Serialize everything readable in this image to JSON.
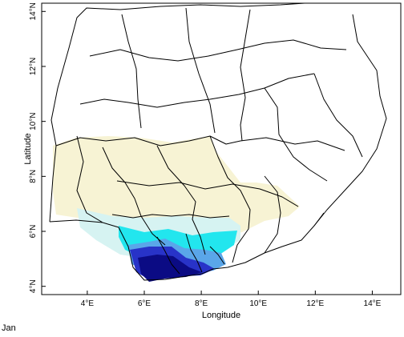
{
  "map": {
    "xlabel": "Longitude",
    "ylabel": "Latitude",
    "x_ticks": [
      {
        "value": 4,
        "label": "4°E"
      },
      {
        "value": 6,
        "label": "6°E"
      },
      {
        "value": 8,
        "label": "8°E"
      },
      {
        "value": 10,
        "label": "10°E"
      },
      {
        "value": 12,
        "label": "12°E"
      },
      {
        "value": 14,
        "label": "14°E"
      }
    ],
    "y_ticks": [
      {
        "value": 4,
        "label": "4°N"
      },
      {
        "value": 6,
        "label": "6°N"
      },
      {
        "value": 8,
        "label": "8°N"
      },
      {
        "value": 10,
        "label": "10°N"
      },
      {
        "value": 12,
        "label": "12°N"
      },
      {
        "value": 14,
        "label": "14°N"
      }
    ],
    "xlim": [
      2.4,
      15.0
    ],
    "ylim": [
      3.7,
      14.3
    ],
    "shading_colors": [
      "#f7f3d4",
      "#d6f3f2",
      "#22e6ee",
      "#5aa6e9",
      "#2833c8",
      "#0b0b84"
    ]
  },
  "month_label": "Jan"
}
